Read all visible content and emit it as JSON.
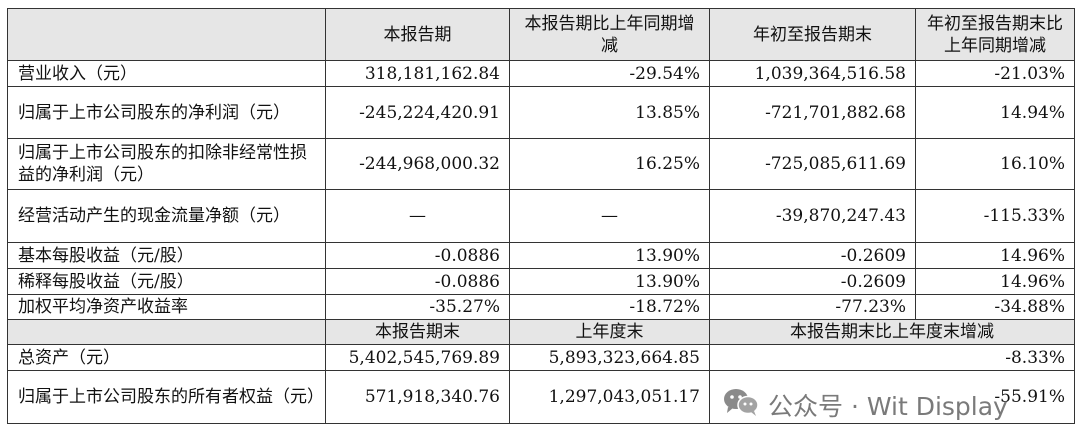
{
  "header": {
    "blank": "",
    "col1": "本报告期",
    "col2": "本报告期比上年同期增减",
    "col3": "年初至报告期末",
    "col4": "年初至报告期末比上年同期增减"
  },
  "rows": [
    {
      "label": "营业收入（元）",
      "c1": "318,181,162.84",
      "c2": "-29.54%",
      "c3": "1,039,364,516.58",
      "c4": "-21.03%"
    },
    {
      "label": "归属于上市公司股东的净利润（元）",
      "c1": "-245,224,420.91",
      "c2": "13.85%",
      "c3": "-721,701,882.68",
      "c4": "14.94%"
    },
    {
      "label": "归属于上市公司股东的扣除非经常性损益的净利润（元）",
      "c1": "-244,968,000.32",
      "c2": "16.25%",
      "c3": "-725,085,611.69",
      "c4": "16.10%"
    },
    {
      "label": "经营活动产生的现金流量净额（元）",
      "c1": "—",
      "c2": "—",
      "c3": "-39,870,247.43",
      "c4": "-115.33%"
    },
    {
      "label": "基本每股收益（元/股）",
      "c1": "-0.0886",
      "c2": "13.90%",
      "c3": "-0.2609",
      "c4": "14.96%"
    },
    {
      "label": "稀释每股收益（元/股）",
      "c1": "-0.0886",
      "c2": "13.90%",
      "c3": "-0.2609",
      "c4": "14.96%"
    }
  ],
  "roe": {
    "label": "加权平均净资产收益率",
    "c1": "-35.27%",
    "c2": "-18.72%",
    "c3": "-77.23%",
    "c4": "-34.88%"
  },
  "header2": {
    "blank": "",
    "col1": "本报告期末",
    "col2": "上年度末",
    "col3": "本报告期末比上年度末增减"
  },
  "rows2": [
    {
      "label": "总资产（元）",
      "c1": "5,402,545,769.89",
      "c2": "5,893,323,664.85",
      "c3": "-8.33%"
    },
    {
      "label": "归属于上市公司股东的所有者权益（元）",
      "c1": "571,918,340.76",
      "c2": "1,297,043,051.17",
      "c3": "-55.91%"
    }
  ],
  "watermark": {
    "text": "公众号 · Wit Display",
    "icon": "wechat-icon"
  }
}
